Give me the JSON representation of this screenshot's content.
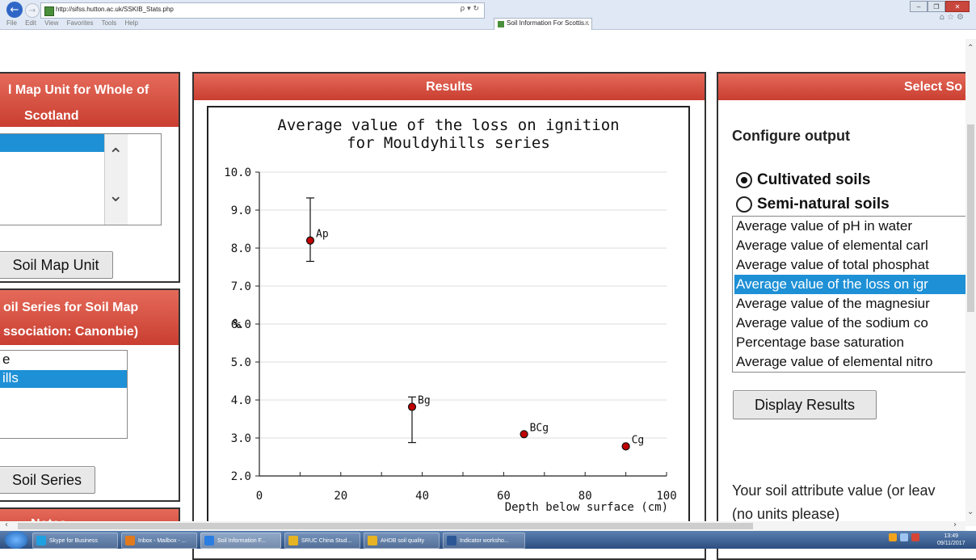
{
  "browser": {
    "url": "http://sifss.hutton.ac.uk/SSKIB_Stats.php",
    "tab_title": "Soil Information For Scottis...",
    "tab_close": "×",
    "menu": [
      "File",
      "Edit",
      "View",
      "Favorites",
      "Tools",
      "Help"
    ],
    "search_icon": "ρ ▾ ↻"
  },
  "map_unit_panel": {
    "header_line1": "l Map Unit for Whole of",
    "header_line2": "Scotland",
    "button": "Soil Map Unit"
  },
  "series_panel": {
    "header_line1": "oil Series for Soil Map",
    "header_line2": "ssociation: Canonbie)",
    "items": [
      "e",
      "ills"
    ],
    "selected_index": 1,
    "button": "Soil Series"
  },
  "notes_panel": {
    "header": "Notes"
  },
  "results_panel": {
    "header": "Results"
  },
  "chart_data": {
    "type": "scatter",
    "title_line1": "Average value of the loss on ignition",
    "title_line2": "for Mouldyhills series",
    "xlabel": "Depth below surface (cm)",
    "ylabel": "%",
    "xlim": [
      0,
      100
    ],
    "ylim": [
      2.0,
      10.0
    ],
    "x_ticks": [
      0,
      20,
      40,
      60,
      80,
      100
    ],
    "y_ticks": [
      "2.0",
      "3.0",
      "4.0",
      "5.0",
      "6.0",
      "7.0",
      "8.0",
      "9.0",
      "10.0"
    ],
    "grid": true,
    "points": [
      {
        "label": "Ap",
        "x": 12.5,
        "y": 8.2,
        "err_low": 7.65,
        "err_high": 9.32
      },
      {
        "label": "Bg",
        "x": 37.5,
        "y": 3.82,
        "err_low": 2.88,
        "err_high": 4.08
      },
      {
        "label": "BCg",
        "x": 65,
        "y": 3.1
      },
      {
        "label": "Cg",
        "x": 90,
        "y": 2.78
      }
    ],
    "point_color": "#c00000"
  },
  "select_panel": {
    "header": "Select So",
    "configure_label": "Configure output",
    "radio_cultivated": "Cultivated soils",
    "radio_seminatural": "Semi-natural soils",
    "radio_selected": "cultivated",
    "attributes": [
      "Average value of pH in water",
      "Average value of elemental carl",
      "Average value of total phosphat",
      "Average value of the loss on igr",
      "Average value of the magnesiur",
      "Average value of the sodium co",
      "Percentage base saturation",
      "Average value of elemental nitro"
    ],
    "selected_attribute_index": 3,
    "display_button": "Display Results",
    "attribute_value_label": "Your soil attribute value (or leav",
    "units_label": "(no units please)"
  },
  "taskbar": {
    "tasks": [
      {
        "label": "Skype for Business",
        "icon_color": "#1fa0e0"
      },
      {
        "label": "Inbox - Mailbox - ...",
        "icon_color": "#e07a1c"
      },
      {
        "label": "Soil Information F...",
        "icon_color": "#2a7de1"
      },
      {
        "label": "SRUC China Stud...",
        "icon_color": "#e6b422"
      },
      {
        "label": "AHDB soil quality",
        "icon_color": "#e6b422"
      },
      {
        "label": "Indicator worksho...",
        "icon_color": "#2b5797"
      }
    ],
    "time": "13:49",
    "date": "09/11/2017"
  },
  "colors": {
    "header_red": "#d9493a",
    "selection_blue": "#1e90d6"
  }
}
